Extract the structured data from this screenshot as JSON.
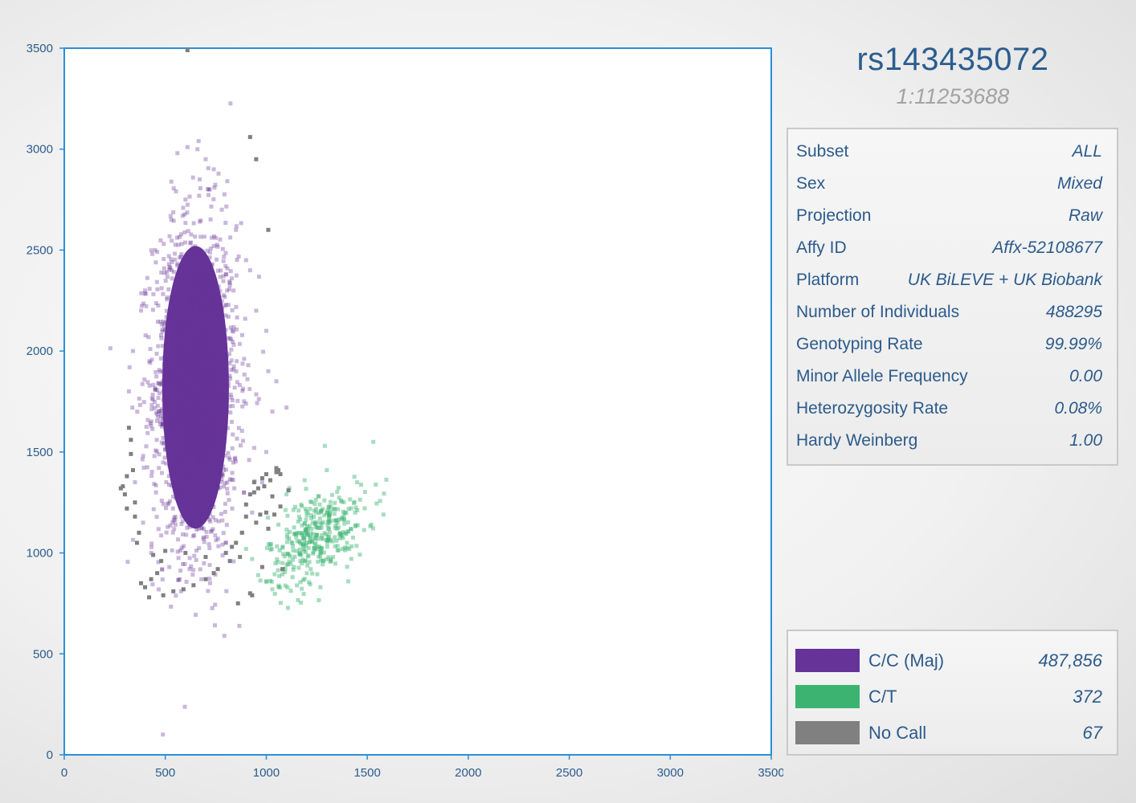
{
  "snp": {
    "id": "rs143435072",
    "position": "1:11253688"
  },
  "info": [
    {
      "label": "Subset",
      "value": "ALL"
    },
    {
      "label": "Sex",
      "value": "Mixed"
    },
    {
      "label": "Projection",
      "value": "Raw"
    },
    {
      "label": "Affy ID",
      "value": "Affx-52108677"
    },
    {
      "label": "Platform",
      "value": "UK BiLEVE + UK Biobank"
    },
    {
      "label": "Number of Individuals",
      "value": "488295"
    },
    {
      "label": "Genotyping Rate",
      "value": "99.99%"
    },
    {
      "label": "Minor Allele Frequency",
      "value": "0.00"
    },
    {
      "label": "Heterozygosity Rate",
      "value": "0.08%"
    },
    {
      "label": "Hardy Weinberg",
      "value": "1.00"
    }
  ],
  "legend": [
    {
      "label": "C/C (Maj)",
      "count": "487,856",
      "color": "#663399"
    },
    {
      "label": "C/T",
      "count": "372",
      "color": "#3cb371"
    },
    {
      "label": "No Call",
      "count": "67",
      "color": "#808080"
    }
  ],
  "chart_data": {
    "type": "scatter",
    "xlim": [
      0,
      3500
    ],
    "ylim": [
      0,
      3500
    ],
    "xticks": [
      "0",
      "500",
      "1000",
      "1500",
      "2000",
      "2500",
      "3000",
      "3500"
    ],
    "yticks": [
      "0",
      "500",
      "1000",
      "1500",
      "2000",
      "2500",
      "3000",
      "3500"
    ],
    "series": [
      {
        "name": "C/C (Maj)",
        "color": "#663399",
        "cluster": {
          "center": [
            650,
            1820
          ],
          "spread": [
            190,
            820
          ],
          "core": [
            165,
            700
          ]
        },
        "points": [
          [
            610,
            3010
          ],
          [
            665,
            3040
          ],
          [
            700,
            2950
          ],
          [
            740,
            2900
          ],
          [
            560,
            2980
          ],
          [
            600,
            2750
          ],
          [
            720,
            2800
          ],
          [
            780,
            2700
          ],
          [
            530,
            2650
          ],
          [
            850,
            2600
          ],
          [
            900,
            2450
          ],
          [
            920,
            2400
          ],
          [
            450,
            2500
          ],
          [
            400,
            2300
          ],
          [
            380,
            2200
          ],
          [
            950,
            2200
          ],
          [
            1000,
            2100
          ],
          [
            1010,
            1900
          ],
          [
            1050,
            1850
          ],
          [
            340,
            2000
          ],
          [
            320,
            1800
          ],
          [
            1030,
            1700
          ],
          [
            1100,
            1720
          ],
          [
            1000,
            1500
          ],
          [
            350,
            1350
          ],
          [
            390,
            1150
          ],
          [
            980,
            1350
          ],
          [
            930,
            1200
          ],
          [
            880,
            1100
          ],
          [
            800,
            1050
          ],
          [
            720,
            940
          ],
          [
            620,
            920
          ],
          [
            520,
            930
          ],
          [
            430,
            1000
          ],
          [
            890,
            1300
          ]
        ]
      },
      {
        "name": "C/T",
        "color": "#3cb371",
        "cluster": {
          "center": [
            1250,
            1080
          ],
          "spread": [
            120,
            110
          ]
        },
        "points": [
          [
            1530,
            1550
          ],
          [
            1290,
            1530
          ],
          [
            1300,
            1410
          ],
          [
            1450,
            1350
          ],
          [
            1580,
            1190
          ],
          [
            1520,
            1140
          ],
          [
            1100,
            1290
          ],
          [
            1160,
            1210
          ],
          [
            1060,
            1140
          ],
          [
            900,
            1020
          ],
          [
            930,
            970
          ],
          [
            960,
            890
          ],
          [
            1000,
            860
          ],
          [
            1030,
            820
          ],
          [
            1130,
            880
          ],
          [
            1220,
            920
          ],
          [
            1320,
            960
          ],
          [
            1400,
            1050
          ],
          [
            1440,
            1200
          ],
          [
            1370,
            1260
          ],
          [
            1190,
            1360
          ],
          [
            1260,
            1280
          ],
          [
            1310,
            1180
          ],
          [
            1230,
            1150
          ],
          [
            1150,
            1010
          ],
          [
            1080,
            950
          ],
          [
            1200,
            1050
          ],
          [
            1270,
            1000
          ],
          [
            1350,
            1120
          ],
          [
            1180,
            1100
          ]
        ]
      },
      {
        "name": "No Call",
        "color": "#808080",
        "points": [
          [
            610,
            3490
          ],
          [
            920,
            3060
          ],
          [
            950,
            2950
          ],
          [
            1010,
            2600
          ],
          [
            320,
            1620
          ],
          [
            330,
            1490
          ],
          [
            340,
            1410
          ],
          [
            310,
            1380
          ],
          [
            280,
            1320
          ],
          [
            300,
            1290
          ],
          [
            350,
            1250
          ],
          [
            1050,
            1400
          ],
          [
            1070,
            1390
          ],
          [
            1020,
            1360
          ],
          [
            990,
            1330
          ],
          [
            960,
            1320
          ],
          [
            940,
            1300
          ],
          [
            920,
            1290
          ],
          [
            1000,
            1200
          ],
          [
            970,
            1190
          ],
          [
            900,
            1180
          ],
          [
            950,
            1150
          ],
          [
            1010,
            1120
          ],
          [
            880,
            1100
          ],
          [
            850,
            1050
          ],
          [
            830,
            1030
          ],
          [
            800,
            1000
          ],
          [
            870,
            980
          ],
          [
            820,
            960
          ],
          [
            760,
            920
          ],
          [
            740,
            900
          ],
          [
            700,
            870
          ],
          [
            640,
            840
          ],
          [
            590,
            820
          ],
          [
            540,
            810
          ],
          [
            490,
            790
          ],
          [
            420,
            780
          ],
          [
            400,
            830
          ],
          [
            380,
            850
          ],
          [
            430,
            870
          ],
          [
            460,
            900
          ],
          [
            480,
            960
          ],
          [
            500,
            1010
          ],
          [
            440,
            990
          ],
          [
            360,
            1050
          ],
          [
            860,
            750
          ],
          [
            920,
            800
          ],
          [
            930,
            790
          ],
          [
            1080,
            920
          ],
          [
            980,
            930
          ],
          [
            1110,
            1310
          ],
          [
            1040,
            1190
          ],
          [
            1070,
            1230
          ],
          [
            330,
            1560
          ],
          [
            350,
            1180
          ],
          [
            370,
            1100
          ],
          [
            600,
            1000
          ],
          [
            700,
            980
          ],
          [
            900,
            1240
          ],
          [
            940,
            1350
          ],
          [
            1030,
            1280
          ],
          [
            1050,
            1420
          ],
          [
            310,
            1220
          ],
          [
            290,
            1330
          ],
          [
            1060,
            1410
          ],
          [
            1000,
            1390
          ],
          [
            980,
            1370
          ]
        ]
      }
    ]
  }
}
